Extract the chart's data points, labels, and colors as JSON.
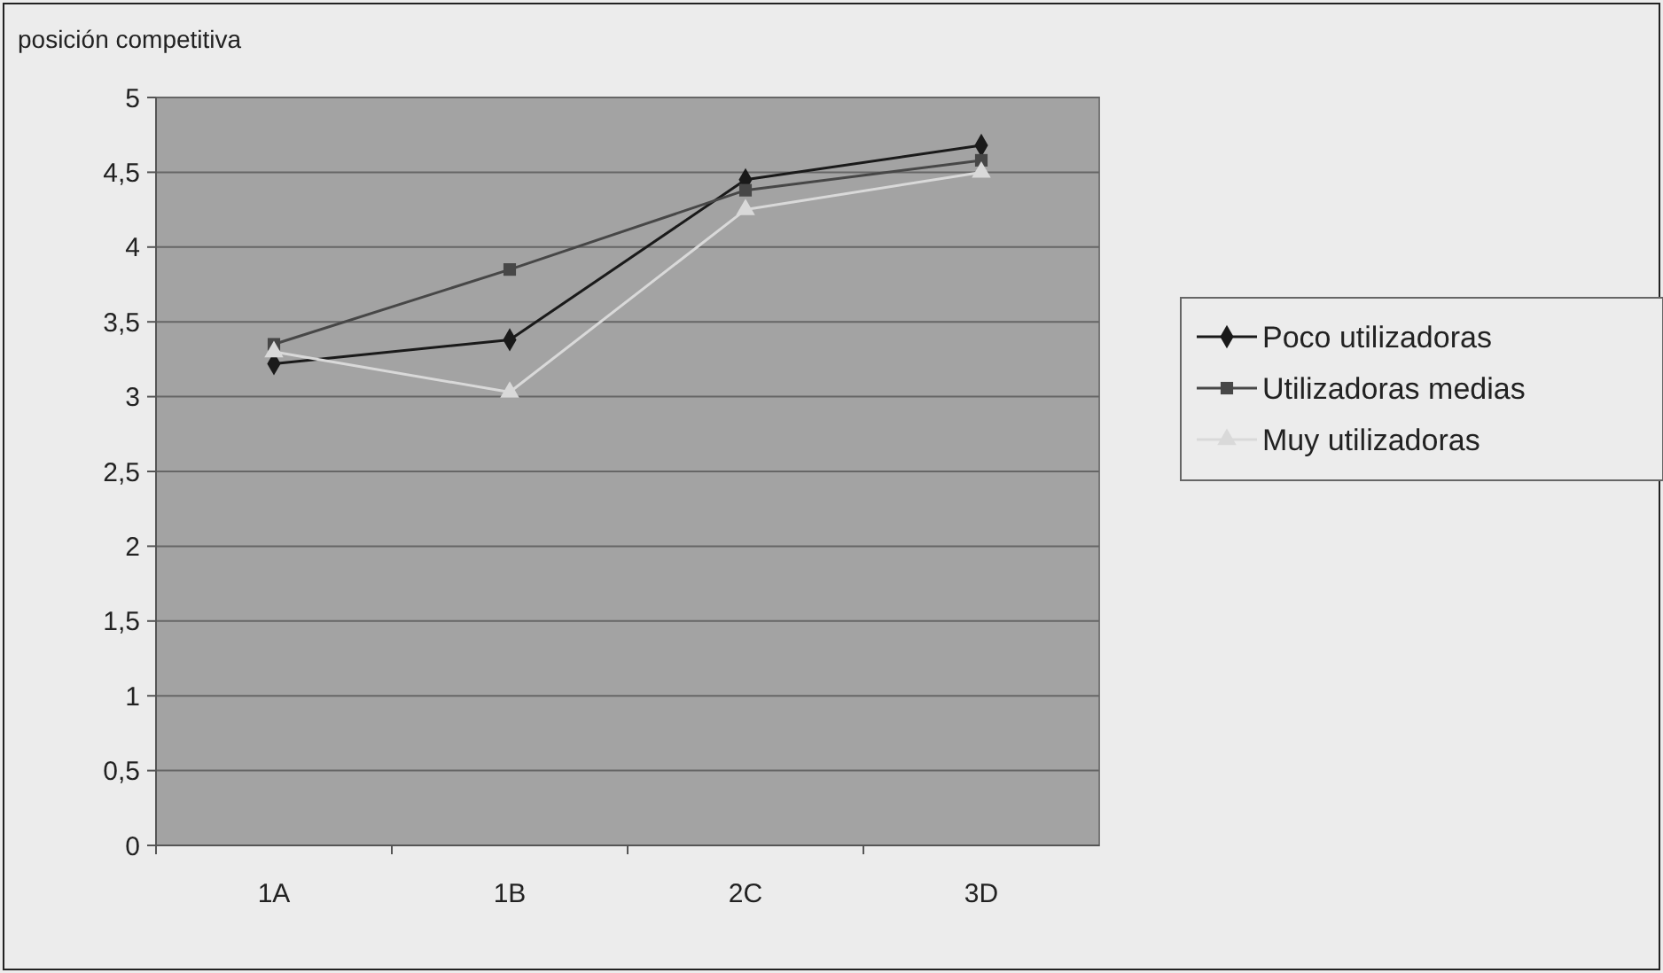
{
  "chart_data": {
    "type": "line",
    "ylabel": "posición competitiva",
    "categories": [
      "1A",
      "1B",
      "2C",
      "3D"
    ],
    "ylim": [
      0,
      5
    ],
    "yticks": [
      0,
      {
        "value": 0.5,
        "label": "0,5"
      },
      1,
      {
        "value": 1.5,
        "label": "1,5"
      },
      2,
      {
        "value": 2.5,
        "label": "2,5"
      },
      3,
      {
        "value": 3.5,
        "label": "3,5"
      },
      4,
      {
        "value": 4.5,
        "label": "4,5"
      },
      5
    ],
    "grid": "y",
    "legend": "right",
    "series": [
      {
        "name": "Poco utilizadoras",
        "color": "#1a1a1a",
        "marker": "diamond",
        "values": [
          3.22,
          3.38,
          4.45,
          4.68
        ]
      },
      {
        "name": "Utilizadoras medias",
        "color": "#474747",
        "marker": "square",
        "values": [
          3.35,
          3.85,
          4.38,
          4.58
        ]
      },
      {
        "name": "Muy utilizadoras",
        "color": "#d9d9d9",
        "marker": "triangle",
        "values": [
          3.3,
          3.03,
          4.25,
          4.5
        ]
      }
    ]
  }
}
